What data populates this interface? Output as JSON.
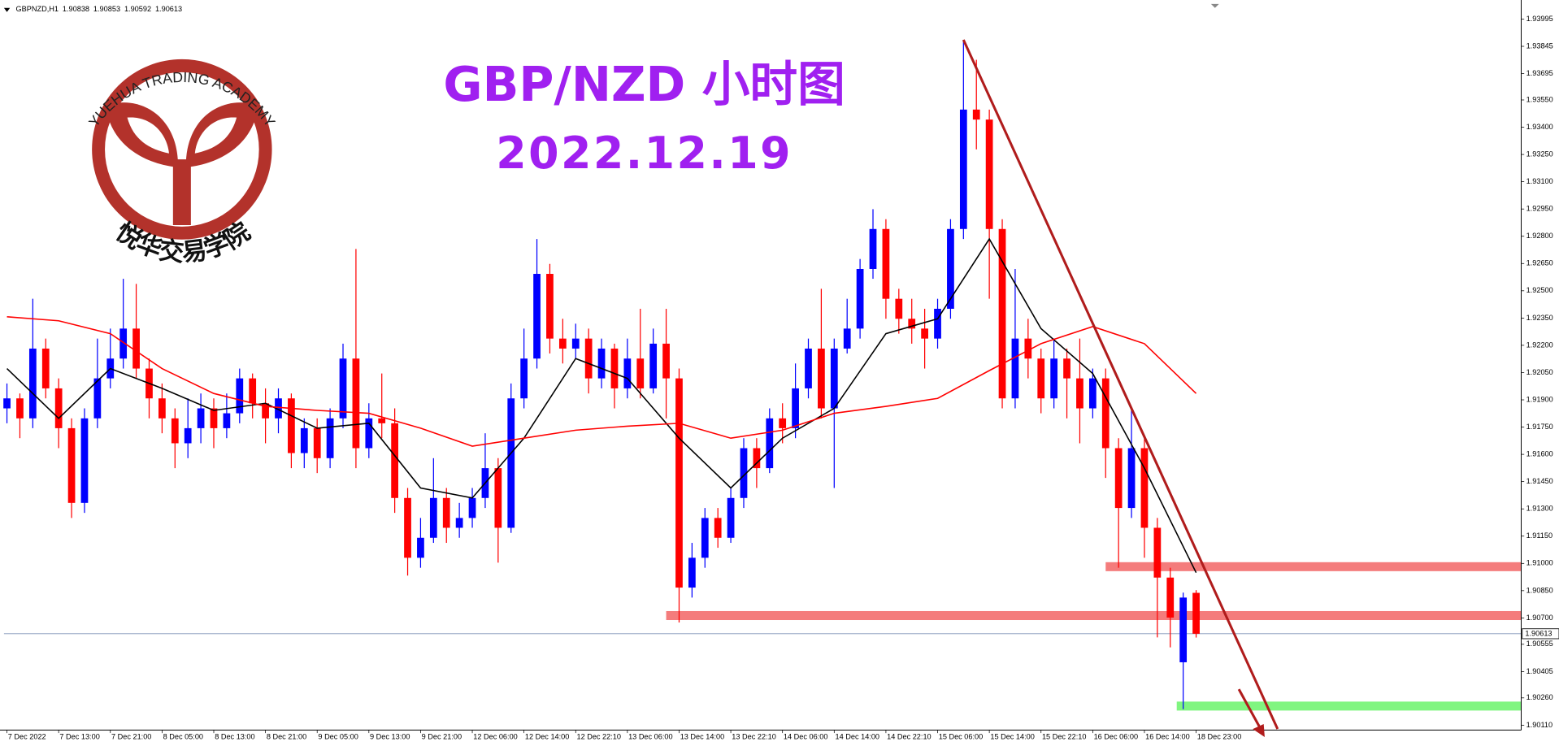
{
  "header": {
    "symbol": "GBPNZD,H1"
  },
  "logo": {
    "text": "YUEHUA TRADING ACADEMY",
    "name": "悦华交易学院"
  },
  "chart_data": {
    "type": "candlestick",
    "title": "GBP/NZD 小时图",
    "subtitle": "2022.12.19",
    "up_color": "#0000ff",
    "down_color": "#ff0000",
    "ohlc": [
      [
        1.91853,
        1.9199,
        1.91771,
        1.91908
      ],
      [
        1.91908,
        1.91935,
        1.91689,
        1.91798
      ],
      [
        1.91798,
        1.92456,
        1.91744,
        1.92182
      ],
      [
        1.92182,
        1.92237,
        1.91908,
        1.91963
      ],
      [
        1.91963,
        1.92018,
        1.91634,
        1.91744
      ],
      [
        1.91744,
        1.91798,
        1.9125,
        1.91333
      ],
      [
        1.91333,
        1.91853,
        1.91278,
        1.91798
      ],
      [
        1.91798,
        1.92237,
        1.91744,
        1.92018
      ],
      [
        1.92018,
        1.92292,
        1.91963,
        1.92127
      ],
      [
        1.92127,
        1.92566,
        1.92072,
        1.92292
      ],
      [
        1.92292,
        1.92538,
        1.92018,
        1.92072
      ],
      [
        1.92072,
        1.92127,
        1.91798,
        1.91908
      ],
      [
        1.91908,
        1.9199,
        1.91716,
        1.91798
      ],
      [
        1.91798,
        1.91853,
        1.91524,
        1.91661
      ],
      [
        1.91661,
        1.91908,
        1.91579,
        1.91744
      ],
      [
        1.91744,
        1.91935,
        1.91661,
        1.91853
      ],
      [
        1.91853,
        1.91908,
        1.91634,
        1.91744
      ],
      [
        1.91744,
        1.91935,
        1.91689,
        1.91826
      ],
      [
        1.91826,
        1.92072,
        1.91771,
        1.92018
      ],
      [
        1.92018,
        1.92045,
        1.91798,
        1.91881
      ],
      [
        1.91881,
        1.91963,
        1.91661,
        1.91798
      ],
      [
        1.91798,
        1.91963,
        1.91716,
        1.91908
      ],
      [
        1.91908,
        1.91935,
        1.91524,
        1.91607
      ],
      [
        1.91607,
        1.91798,
        1.91524,
        1.91744
      ],
      [
        1.91744,
        1.91798,
        1.91497,
        1.91579
      ],
      [
        1.91579,
        1.91853,
        1.91524,
        1.91798
      ],
      [
        1.91798,
        1.92209,
        1.91744,
        1.92127
      ],
      [
        1.92127,
        1.9273,
        1.91524,
        1.91634
      ],
      [
        1.91634,
        1.91881,
        1.91579,
        1.91798
      ],
      [
        1.91798,
        1.92045,
        1.91689,
        1.91771
      ],
      [
        1.91771,
        1.91853,
        1.91278,
        1.9136
      ],
      [
        1.9136,
        1.91415,
        1.90933,
        1.91031
      ],
      [
        1.91031,
        1.9125,
        1.90976,
        1.91141
      ],
      [
        1.91141,
        1.91579,
        1.91113,
        1.9136
      ],
      [
        1.9136,
        1.91415,
        1.91113,
        1.91196
      ],
      [
        1.91196,
        1.91333,
        1.91141,
        1.9125
      ],
      [
        1.9125,
        1.91415,
        1.91196,
        1.9136
      ],
      [
        1.9136,
        1.91716,
        1.91305,
        1.91524
      ],
      [
        1.91524,
        1.91579,
        1.91004,
        1.91196
      ],
      [
        1.91196,
        1.9199,
        1.91168,
        1.91908
      ],
      [
        1.91908,
        1.92292,
        1.91853,
        1.92127
      ],
      [
        1.92127,
        1.92785,
        1.92072,
        1.92593
      ],
      [
        1.92593,
        1.92648,
        1.92155,
        1.92237
      ],
      [
        1.92237,
        1.92346,
        1.921,
        1.92182
      ],
      [
        1.92182,
        1.92319,
        1.92127,
        1.92237
      ],
      [
        1.92237,
        1.92292,
        1.91935,
        1.92018
      ],
      [
        1.92018,
        1.92237,
        1.91963,
        1.92182
      ],
      [
        1.92182,
        1.92209,
        1.91853,
        1.91963
      ],
      [
        1.91963,
        1.92237,
        1.91908,
        1.92127
      ],
      [
        1.92127,
        1.92401,
        1.91908,
        1.91963
      ],
      [
        1.91963,
        1.92292,
        1.91935,
        1.92209
      ],
      [
        1.92209,
        1.92401,
        1.91798,
        1.92018
      ],
      [
        1.92018,
        1.92072,
        1.90675,
        1.90867
      ],
      [
        1.90867,
        1.91113,
        1.90812,
        1.91031
      ],
      [
        1.91031,
        1.91305,
        1.90976,
        1.9125
      ],
      [
        1.9125,
        1.91305,
        1.91086,
        1.91141
      ],
      [
        1.91141,
        1.91415,
        1.91113,
        1.9136
      ],
      [
        1.9136,
        1.91689,
        1.91305,
        1.91634
      ],
      [
        1.91634,
        1.91689,
        1.91415,
        1.91524
      ],
      [
        1.91524,
        1.91853,
        1.91497,
        1.91798
      ],
      [
        1.91798,
        1.91881,
        1.91661,
        1.91744
      ],
      [
        1.91744,
        1.921,
        1.91689,
        1.91963
      ],
      [
        1.91963,
        1.92237,
        1.91908,
        1.92182
      ],
      [
        1.92182,
        1.92511,
        1.91798,
        1.91853
      ],
      [
        1.91853,
        1.92237,
        1.91415,
        1.92182
      ],
      [
        1.92182,
        1.92456,
        1.92155,
        1.92292
      ],
      [
        1.92292,
        1.92675,
        1.92237,
        1.9262
      ],
      [
        1.9262,
        1.92949,
        1.92566,
        1.9284
      ],
      [
        1.9284,
        1.92894,
        1.92346,
        1.92456
      ],
      [
        1.92456,
        1.92511,
        1.92264,
        1.92346
      ],
      [
        1.92346,
        1.92456,
        1.92209,
        1.92292
      ],
      [
        1.92292,
        1.92401,
        1.92072,
        1.92237
      ],
      [
        1.92237,
        1.92456,
        1.92182,
        1.92401
      ],
      [
        1.92401,
        1.92894,
        1.92346,
        1.9284
      ],
      [
        1.9284,
        1.93881,
        1.92785,
        1.93497
      ],
      [
        1.93497,
        1.93771,
        1.93278,
        1.93442
      ],
      [
        1.93442,
        1.93497,
        1.92456,
        1.9284
      ],
      [
        1.9284,
        1.92894,
        1.91853,
        1.91908
      ],
      [
        1.91908,
        1.9262,
        1.91853,
        1.92237
      ],
      [
        1.92237,
        1.92346,
        1.92018,
        1.92127
      ],
      [
        1.92127,
        1.92182,
        1.91826,
        1.91908
      ],
      [
        1.91908,
        1.92237,
        1.91853,
        1.92127
      ],
      [
        1.92127,
        1.92182,
        1.91798,
        1.92018
      ],
      [
        1.92018,
        1.92237,
        1.91661,
        1.91853
      ],
      [
        1.91853,
        1.92072,
        1.91798,
        1.92018
      ],
      [
        1.92018,
        1.92072,
        1.9147,
        1.91634
      ],
      [
        1.91634,
        1.91689,
        1.90976,
        1.91305
      ],
      [
        1.91305,
        1.91853,
        1.9125,
        1.91634
      ],
      [
        1.91634,
        1.91689,
        1.91031,
        1.91196
      ],
      [
        1.91196,
        1.9125,
        1.90593,
        1.90922
      ],
      [
        1.90922,
        1.90976,
        1.90538,
        1.90702
      ],
      [
        1.90456,
        1.90839,
        1.90198,
        1.90812
      ],
      [
        1.90838,
        1.90853,
        1.90592,
        1.90613
      ]
    ],
    "xlim": [
      -0.23,
      117.15
    ],
    "ylim": [
      1.90083,
      1.94078
    ],
    "xticks": [
      {
        "value": 0,
        "label": "7 Dec 2022"
      },
      {
        "value": 4,
        "label": "7 Dec 13:00"
      },
      {
        "value": 8,
        "label": "7 Dec 21:00"
      },
      {
        "value": 12,
        "label": "8 Dec 05:00"
      },
      {
        "value": 16,
        "label": "8 Dec 13:00"
      },
      {
        "value": 20,
        "label": "8 Dec 21:00"
      },
      {
        "value": 24,
        "label": "9 Dec 05:00"
      },
      {
        "value": 28,
        "label": "9 Dec 13:00"
      },
      {
        "value": 32,
        "label": "9 Dec 21:00"
      },
      {
        "value": 36,
        "label": "12 Dec 06:00"
      },
      {
        "value": 40,
        "label": "12 Dec 14:00"
      },
      {
        "value": 44,
        "label": "12 Dec 22:10"
      },
      {
        "value": 48,
        "label": "13 Dec 06:00"
      },
      {
        "value": 52,
        "label": "13 Dec 14:00"
      },
      {
        "value": 56,
        "label": "13 Dec 22:10"
      },
      {
        "value": 60,
        "label": "14 Dec 06:00"
      },
      {
        "value": 64,
        "label": "14 Dec 14:00"
      },
      {
        "value": 68,
        "label": "14 Dec 22:10"
      },
      {
        "value": 72,
        "label": "15 Dec 06:00"
      },
      {
        "value": 76,
        "label": "15 Dec 14:00"
      },
      {
        "value": 80,
        "label": "15 Dec 22:10"
      },
      {
        "value": 84,
        "label": "16 Dec 06:00"
      },
      {
        "value": 88,
        "label": "16 Dec 14:00"
      },
      {
        "value": 92,
        "label": "18 Dec 23:00"
      }
    ],
    "yticks": [
      1.93995,
      1.93845,
      1.93695,
      {
        "value": 1.9355,
        "label": "1.93550"
      },
      {
        "value": 1.934,
        "label": "1.93400"
      },
      {
        "value": 1.9325,
        "label": "1.93250"
      },
      {
        "value": 1.931,
        "label": "1.93100"
      },
      {
        "value": 1.9295,
        "label": "1.92950"
      },
      {
        "value": 1.928,
        "label": "1.92800"
      },
      {
        "value": 1.9265,
        "label": "1.92650"
      },
      {
        "value": 1.925,
        "label": "1.92500"
      },
      {
        "value": 1.9235,
        "label": "1.92350"
      },
      {
        "value": 1.922,
        "label": "1.92200"
      },
      {
        "value": 1.9205,
        "label": "1.92050"
      },
      {
        "value": 1.919,
        "label": "1.91900"
      },
      {
        "value": 1.9175,
        "label": "1.91750"
      },
      {
        "value": 1.916,
        "label": "1.91600"
      },
      {
        "value": 1.9145,
        "label": "1.91450"
      },
      {
        "value": 1.913,
        "label": "1.91300"
      },
      {
        "value": 1.9115,
        "label": "1.91150"
      },
      {
        "value": 1.91,
        "label": "1.91000"
      },
      {
        "value": 1.9085,
        "label": "1.90850"
      },
      {
        "value": 1.907,
        "label": "1.90700"
      },
      1.90555,
      1.90405,
      {
        "value": 1.9026,
        "label": "1.90260"
      },
      {
        "value": 1.9011,
        "label": "1.90110"
      }
    ],
    "moving_averages": [
      {
        "color": "#000000",
        "x": [
          0,
          4,
          8,
          12,
          16,
          20,
          24,
          28,
          32,
          36,
          40,
          44,
          48,
          52,
          56,
          60,
          64,
          68,
          72,
          76,
          80,
          84,
          88,
          92
        ],
        "values": [
          1.92072,
          1.91798,
          1.92072,
          1.91963,
          1.91842,
          1.91881,
          1.91744,
          1.91771,
          1.91415,
          1.9136,
          1.91689,
          1.92127,
          1.92018,
          1.91689,
          1.91415,
          1.91689,
          1.91853,
          1.92264,
          1.92346,
          1.92785,
          1.92292,
          1.92045,
          1.91524,
          1.90949
        ]
      },
      {
        "color": "#ff0000",
        "x": [
          0,
          4,
          8,
          12,
          16,
          20,
          24,
          28,
          32,
          36,
          40,
          44,
          48,
          52,
          56,
          60,
          64,
          68,
          72,
          76,
          80,
          84,
          88,
          92
        ],
        "values": [
          1.92357,
          1.92335,
          1.92264,
          1.92072,
          1.91935,
          1.91864,
          1.91842,
          1.91826,
          1.91744,
          1.91645,
          1.91689,
          1.91733,
          1.91755,
          1.91771,
          1.91689,
          1.91733,
          1.91826,
          1.91864,
          1.91908,
          1.92061,
          1.92209,
          1.92303,
          1.92209,
          1.91935
        ]
      }
    ],
    "levels": [
      {
        "value": 1.90982,
        "from": 85,
        "color": "#f47c7c"
      },
      {
        "value": 1.90713,
        "from": 51,
        "color": "#f47c7c"
      },
      {
        "value": 1.90215,
        "from": 90.5,
        "color": "#80f580"
      }
    ],
    "trendline": {
      "x": [
        74,
        98.3
      ],
      "values": [
        1.93881,
        1.90089
      ],
      "color": "#b01c1c"
    }
  }
}
